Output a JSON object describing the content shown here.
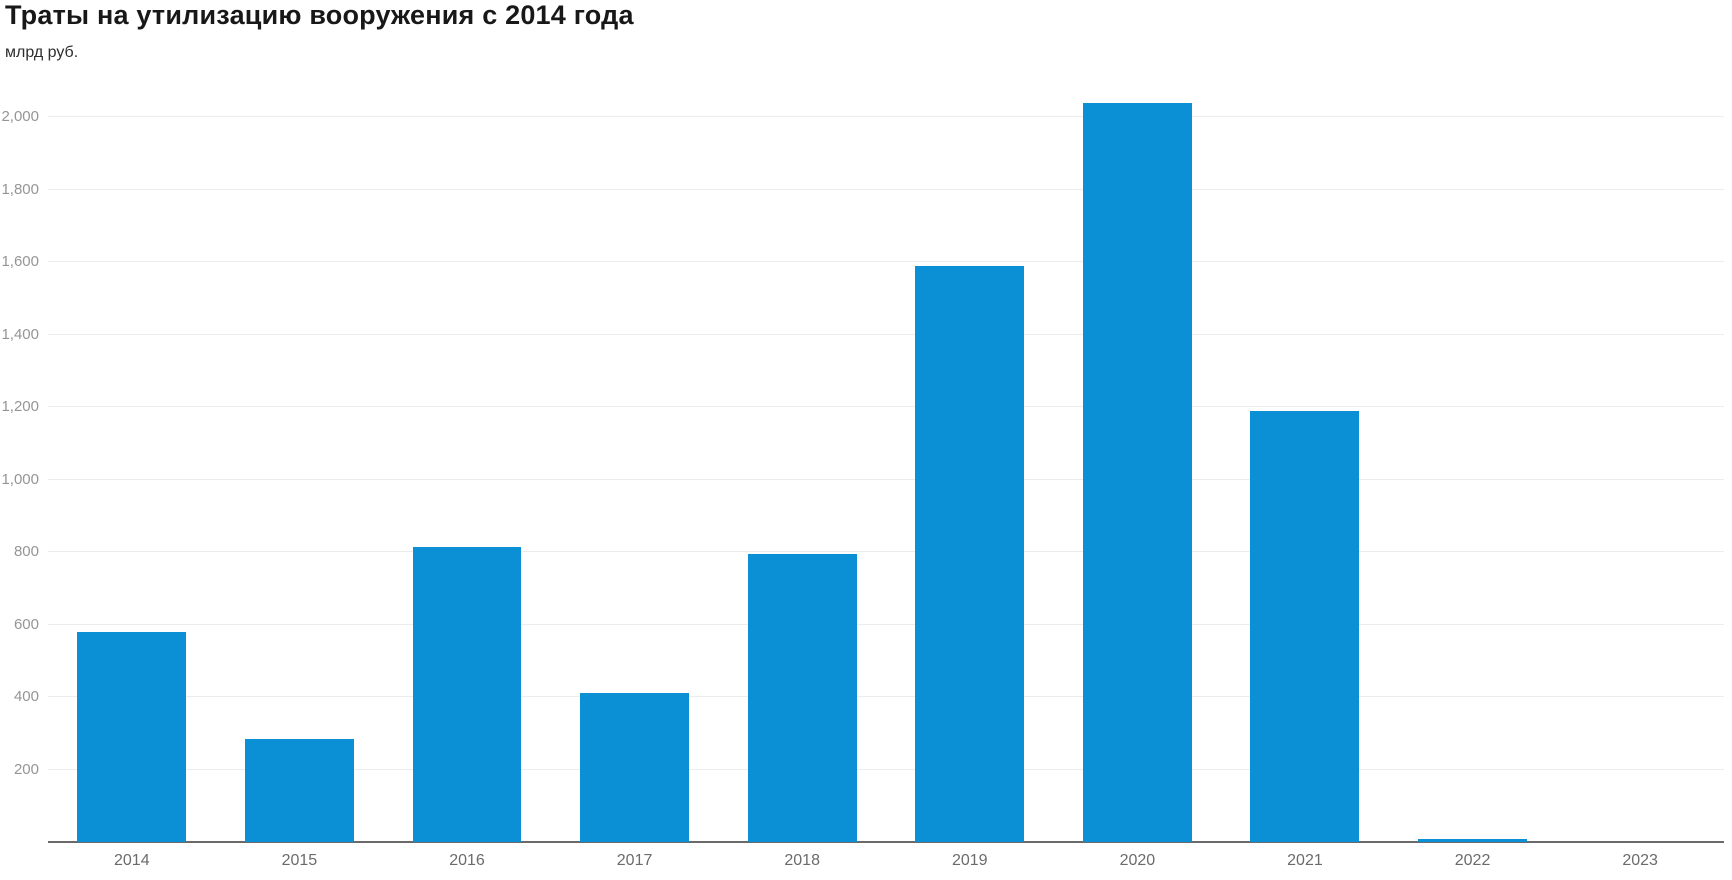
{
  "header": {
    "title": "Траты на утилизацию вооружения с 2014 года",
    "subtitle": "млрд руб."
  },
  "chart_data": {
    "type": "bar",
    "title": "Траты на утилизацию вооружения с 2014 года",
    "subtitle": "млрд руб.",
    "xlabel": "",
    "ylabel": "млрд руб.",
    "categories": [
      "2014",
      "2015",
      "2016",
      "2017",
      "2018",
      "2019",
      "2020",
      "2021",
      "2022",
      "2023"
    ],
    "values": [
      580,
      285,
      815,
      410,
      795,
      1590,
      2040,
      1190,
      8,
      0
    ],
    "ylim": [
      0,
      2130
    ],
    "grid": true,
    "legend": "none",
    "y_ticks": [
      {
        "value": 200,
        "label": "200"
      },
      {
        "value": 400,
        "label": "400"
      },
      {
        "value": 600,
        "label": "600"
      },
      {
        "value": 800,
        "label": "800"
      },
      {
        "value": 1000,
        "label": "1,000"
      },
      {
        "value": 1200,
        "label": "1,200"
      },
      {
        "value": 1400,
        "label": "1,400"
      },
      {
        "value": 1600,
        "label": "1,600"
      },
      {
        "value": 1800,
        "label": "1,800"
      },
      {
        "value": 2000,
        "label": "2,000"
      }
    ],
    "colors": {
      "bar": "#0b90d5",
      "gridline": "#ececec",
      "baseline": "#6a6a6a",
      "title_text": "#181818",
      "subtitle_text": "#2e2e2e",
      "y_tick_text": "#959595",
      "x_tick_text": "#6b6b6b"
    }
  }
}
